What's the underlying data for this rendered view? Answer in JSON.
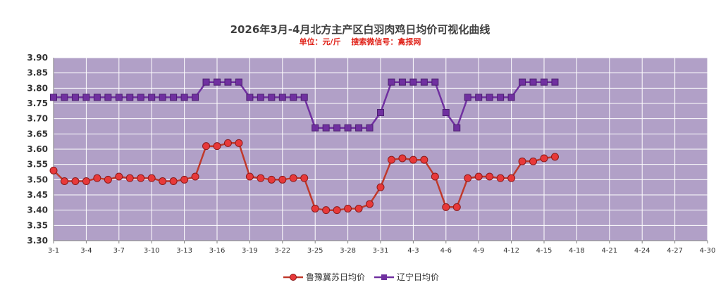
{
  "chart_data": {
    "type": "line",
    "title": "2026年3月-4月北方主产区白羽肉鸡日均价可视化曲线",
    "subtitle": "单位：元/斤　 搜索微信号：禽报网",
    "xlabel": "",
    "ylabel": "",
    "x_start": "3-1",
    "x_end": "4-30",
    "x_tick_labels": [
      "3-1",
      "3-4",
      "3-7",
      "3-10",
      "3-13",
      "3-16",
      "3-19",
      "3-22",
      "3-25",
      "3-28",
      "3-31",
      "4-3",
      "4-6",
      "4-9",
      "4-12",
      "4-15",
      "4-18",
      "4-21",
      "4-24",
      "4-27",
      "4-30"
    ],
    "ylim": [
      3.3,
      3.9
    ],
    "y_ticks": [
      "3.30",
      "3.35",
      "3.40",
      "3.45",
      "3.50",
      "3.55",
      "3.60",
      "3.65",
      "3.70",
      "3.75",
      "3.80",
      "3.85",
      "3.90"
    ],
    "grid": true,
    "legend_position": "bottom",
    "background_color": "#b1a0c7",
    "series": [
      {
        "name": "鲁豫冀苏日均价",
        "color": "#c0392b",
        "marker": "circle",
        "marker_fill": "#e8393a",
        "dates": [
          "3-1",
          "3-2",
          "3-3",
          "3-4",
          "3-5",
          "3-6",
          "3-7",
          "3-8",
          "3-9",
          "3-10",
          "3-11",
          "3-12",
          "3-13",
          "3-14",
          "3-15",
          "3-16",
          "3-17",
          "3-18",
          "3-19",
          "3-20",
          "3-21",
          "3-22",
          "3-23",
          "3-24",
          "3-25",
          "3-26",
          "3-27",
          "3-28",
          "3-29",
          "3-30",
          "3-31",
          "4-1",
          "4-2",
          "4-3",
          "4-4",
          "4-5",
          "4-6",
          "4-7",
          "4-8",
          "4-9",
          "4-10",
          "4-11",
          "4-12",
          "4-13",
          "4-14",
          "4-15",
          "4-16"
        ],
        "values": [
          3.53,
          3.495,
          3.495,
          3.495,
          3.505,
          3.5,
          3.51,
          3.505,
          3.505,
          3.505,
          3.495,
          3.495,
          3.5,
          3.51,
          3.61,
          3.61,
          3.62,
          3.62,
          3.51,
          3.505,
          3.5,
          3.5,
          3.505,
          3.505,
          3.405,
          3.4,
          3.4,
          3.405,
          3.405,
          3.42,
          3.475,
          3.565,
          3.57,
          3.565,
          3.565,
          3.51,
          3.41,
          3.41,
          3.505,
          3.51,
          3.51,
          3.505,
          3.505,
          3.56,
          3.56,
          3.57,
          3.575
        ]
      },
      {
        "name": "辽宁日均价",
        "color": "#7030a0",
        "marker": "square",
        "marker_fill": "#7030a0",
        "dates": [
          "3-1",
          "3-2",
          "3-3",
          "3-4",
          "3-5",
          "3-6",
          "3-7",
          "3-8",
          "3-9",
          "3-10",
          "3-11",
          "3-12",
          "3-13",
          "3-14",
          "3-15",
          "3-16",
          "3-17",
          "3-18",
          "3-19",
          "3-20",
          "3-21",
          "3-22",
          "3-23",
          "3-24",
          "3-25",
          "3-26",
          "3-27",
          "3-28",
          "3-29",
          "3-30",
          "3-31",
          "4-1",
          "4-2",
          "4-3",
          "4-4",
          "4-5",
          "4-6",
          "4-7",
          "4-8",
          "4-9",
          "4-10",
          "4-11",
          "4-12",
          "4-13",
          "4-14",
          "4-15",
          "4-16"
        ],
        "values": [
          3.77,
          3.77,
          3.77,
          3.77,
          3.77,
          3.77,
          3.77,
          3.77,
          3.77,
          3.77,
          3.77,
          3.77,
          3.77,
          3.77,
          3.82,
          3.82,
          3.82,
          3.82,
          3.77,
          3.77,
          3.77,
          3.77,
          3.77,
          3.77,
          3.67,
          3.67,
          3.67,
          3.67,
          3.67,
          3.67,
          3.72,
          3.82,
          3.82,
          3.82,
          3.82,
          3.82,
          3.72,
          3.67,
          3.77,
          3.77,
          3.77,
          3.77,
          3.77,
          3.82,
          3.82,
          3.82,
          3.82
        ]
      }
    ]
  }
}
